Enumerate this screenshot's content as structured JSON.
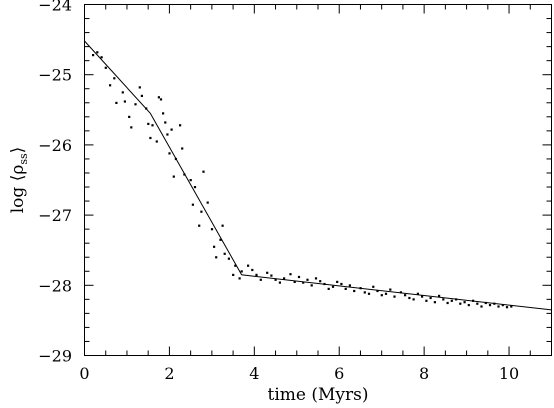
{
  "chart_data": {
    "type": "scatter",
    "xlabel": "time (Myrs)",
    "ylabel": "log ⟨ρ",
    "ylabel_subscript": "ss",
    "ylabel_close": "⟩",
    "xlim": [
      0,
      11
    ],
    "ylim": [
      -29,
      -24
    ],
    "x_ticks": [
      0,
      2,
      4,
      6,
      8,
      10
    ],
    "x_tick_labels": [
      "0",
      "2",
      "4",
      "6",
      "8",
      "10"
    ],
    "y_ticks": [
      -29,
      -28,
      -27,
      -26,
      -25,
      -24
    ],
    "y_tick_labels": [
      "−29",
      "−28",
      "−27",
      "−26",
      "−25",
      "−24"
    ],
    "grid": false,
    "series": [
      {
        "kind": "line",
        "x": [
          0.0,
          1.55,
          3.7,
          11.0
        ],
        "y": [
          -24.52,
          -25.55,
          -27.85,
          -28.35
        ]
      },
      {
        "kind": "points",
        "x": [
          0.2,
          0.3,
          0.4,
          0.5,
          0.6,
          0.7,
          0.75,
          0.9,
          0.95,
          1.05,
          1.1,
          1.2,
          1.3,
          1.35,
          1.45,
          1.5,
          1.55,
          1.6,
          1.7,
          1.75,
          1.8,
          1.85,
          1.9,
          1.95,
          2.0,
          2.05,
          2.1,
          2.15,
          2.25,
          2.3,
          2.35,
          2.5,
          2.55,
          2.6,
          2.7,
          2.75,
          2.8,
          2.9,
          3.0,
          3.05,
          3.1,
          3.2,
          3.25,
          3.3,
          3.4,
          3.5,
          3.55,
          3.65,
          3.7,
          3.85,
          3.95,
          4.05,
          4.15,
          4.3,
          4.4,
          4.5,
          4.6,
          4.7,
          4.85,
          4.95,
          5.05,
          5.15,
          5.25,
          5.35,
          5.45,
          5.55,
          5.65,
          5.75,
          5.85,
          5.95,
          6.05,
          6.15,
          6.25,
          6.35,
          6.5,
          6.6,
          6.7,
          6.8,
          6.9,
          7.0,
          7.1,
          7.2,
          7.3,
          7.45,
          7.55,
          7.65,
          7.75,
          7.85,
          7.95,
          8.05,
          8.15,
          8.25,
          8.35,
          8.45,
          8.55,
          8.65,
          8.75,
          8.85,
          8.95,
          9.05,
          9.15,
          9.25,
          9.35,
          9.45,
          9.55,
          9.65,
          9.75,
          9.85,
          9.95,
          10.05
        ],
        "y": [
          -24.72,
          -24.68,
          -24.75,
          -24.9,
          -25.15,
          -25.05,
          -25.4,
          -25.25,
          -25.38,
          -25.6,
          -25.75,
          -25.42,
          -25.18,
          -25.3,
          -25.48,
          -25.7,
          -25.9,
          -25.72,
          -25.95,
          -25.32,
          -25.35,
          -25.55,
          -25.68,
          -25.85,
          -26.12,
          -25.78,
          -26.45,
          -26.2,
          -25.72,
          -26.05,
          -26.42,
          -26.5,
          -26.85,
          -26.6,
          -27.15,
          -26.95,
          -26.38,
          -26.82,
          -27.2,
          -27.45,
          -27.6,
          -27.35,
          -27.15,
          -27.55,
          -27.62,
          -27.85,
          -27.72,
          -27.9,
          -27.8,
          -27.72,
          -27.78,
          -27.85,
          -27.92,
          -27.82,
          -27.86,
          -27.92,
          -27.96,
          -27.9,
          -27.84,
          -27.95,
          -27.88,
          -27.96,
          -27.92,
          -28.0,
          -27.9,
          -27.94,
          -27.98,
          -28.05,
          -28.02,
          -27.95,
          -27.98,
          -28.05,
          -28.0,
          -28.08,
          -28.04,
          -28.1,
          -28.12,
          -28.02,
          -28.08,
          -28.14,
          -28.12,
          -28.06,
          -28.16,
          -28.1,
          -28.14,
          -28.18,
          -28.2,
          -28.12,
          -28.16,
          -28.22,
          -28.18,
          -28.24,
          -28.15,
          -28.2,
          -28.25,
          -28.22,
          -28.2,
          -28.26,
          -28.24,
          -28.28,
          -28.22,
          -28.26,
          -28.3,
          -28.25,
          -28.28,
          -28.26,
          -28.3,
          -28.28,
          -28.31,
          -28.3
        ]
      }
    ]
  }
}
